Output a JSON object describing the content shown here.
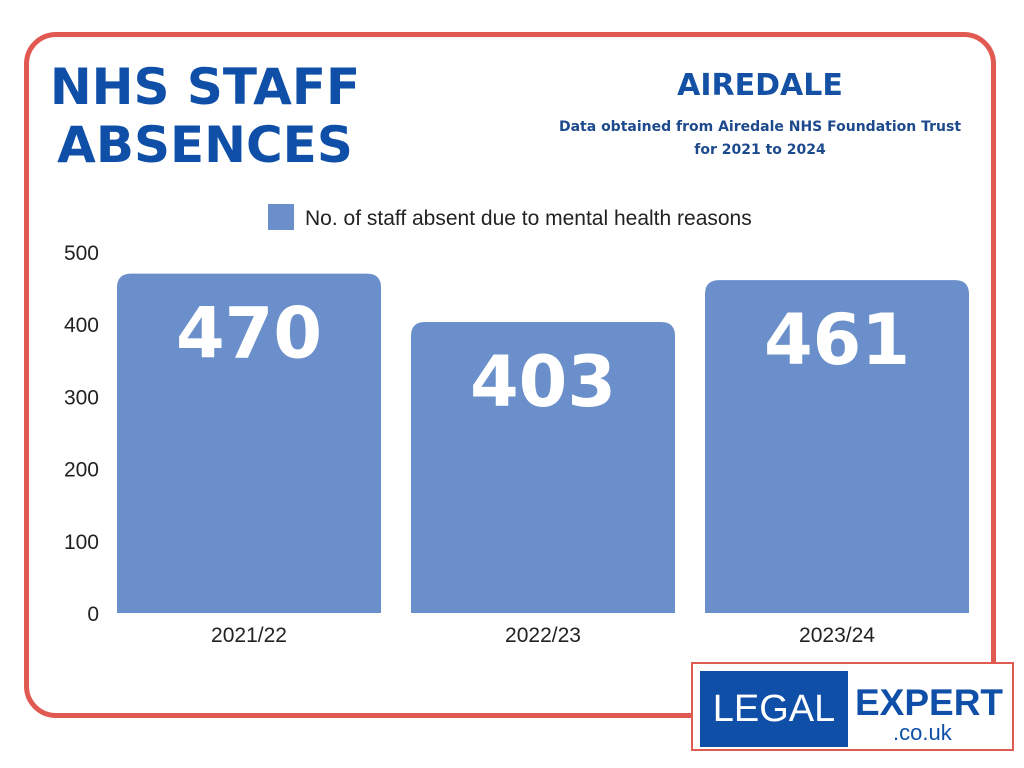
{
  "header": {
    "title_line1": "NHS STAFF",
    "title_line2": "ABSENCES",
    "region": "AIREDALE",
    "source_line1": "Data obtained from Airedale NHS Foundation Trust",
    "source_line2": "for 2021 to 2024"
  },
  "logo": {
    "left": "LEGAL",
    "right": "EXPERT",
    "domain": ".co.uk"
  },
  "colors": {
    "bar": "#6a8fcb",
    "accent": "#0f4fa8",
    "border": "#e05a52"
  },
  "chart_data": {
    "type": "bar",
    "title": "NHS STAFF ABSENCES",
    "categories": [
      "2021/22",
      "2022/23",
      "2023/24"
    ],
    "series": [
      {
        "name": "No. of staff absent due to mental health reasons",
        "values": [
          470,
          403,
          461
        ]
      }
    ],
    "data_labels": [
      "470",
      "403",
      "461"
    ],
    "yticks": [
      "0",
      "100",
      "200",
      "300",
      "400",
      "500"
    ],
    "ylim": [
      0,
      500
    ],
    "xlabel": "",
    "ylabel": "",
    "grid": false,
    "legend": "top-center"
  }
}
